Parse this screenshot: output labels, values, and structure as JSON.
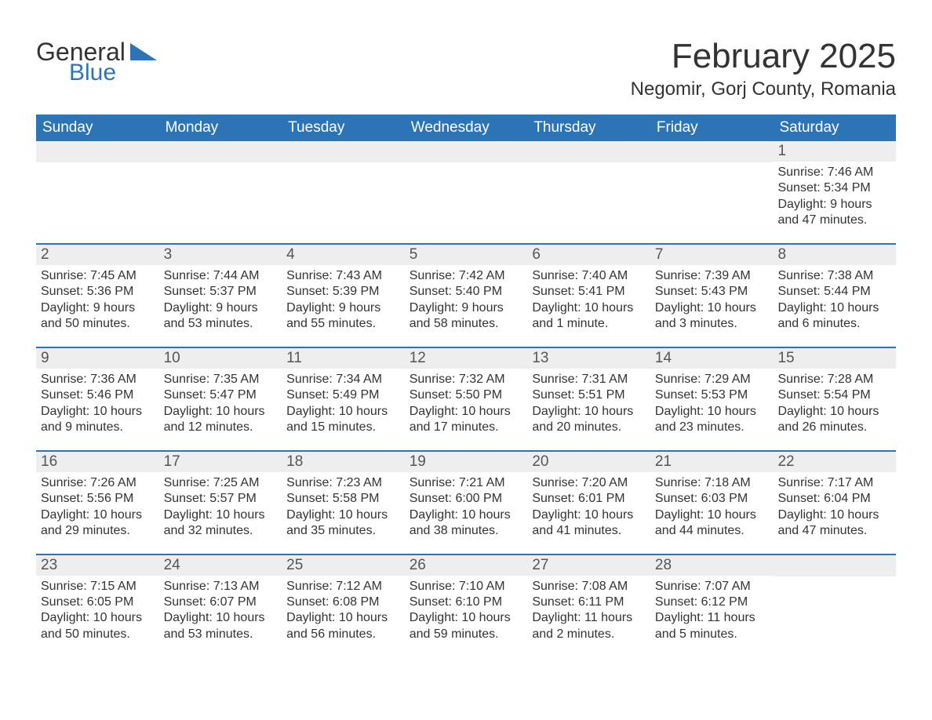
{
  "logo": {
    "text_general": "General",
    "text_blue": "Blue",
    "general_color": "#333333",
    "blue_color": "#2d74b6",
    "shape_color": "#2d74b6"
  },
  "title": "February 2025",
  "location": "Negomir, Gorj County, Romania",
  "colors": {
    "header_bg": "#2d74b6",
    "header_text": "#ffffff",
    "band_bg": "#eeeeee",
    "row_border": "#2d74b6",
    "body_text": "#333333",
    "page_bg": "#ffffff"
  },
  "fonts": {
    "family": "Arial, Helvetica, sans-serif",
    "title_size_pt": 33,
    "location_size_pt": 18,
    "dow_size_pt": 14,
    "daynum_size_pt": 14,
    "detail_size_pt": 12
  },
  "days_of_week": [
    "Sunday",
    "Monday",
    "Tuesday",
    "Wednesday",
    "Thursday",
    "Friday",
    "Saturday"
  ],
  "weeks": [
    [
      null,
      null,
      null,
      null,
      null,
      null,
      {
        "n": "1",
        "sunrise": "Sunrise: 7:46 AM",
        "sunset": "Sunset: 5:34 PM",
        "daylight": "Daylight: 9 hours and 47 minutes."
      }
    ],
    [
      {
        "n": "2",
        "sunrise": "Sunrise: 7:45 AM",
        "sunset": "Sunset: 5:36 PM",
        "daylight": "Daylight: 9 hours and 50 minutes."
      },
      {
        "n": "3",
        "sunrise": "Sunrise: 7:44 AM",
        "sunset": "Sunset: 5:37 PM",
        "daylight": "Daylight: 9 hours and 53 minutes."
      },
      {
        "n": "4",
        "sunrise": "Sunrise: 7:43 AM",
        "sunset": "Sunset: 5:39 PM",
        "daylight": "Daylight: 9 hours and 55 minutes."
      },
      {
        "n": "5",
        "sunrise": "Sunrise: 7:42 AM",
        "sunset": "Sunset: 5:40 PM",
        "daylight": "Daylight: 9 hours and 58 minutes."
      },
      {
        "n": "6",
        "sunrise": "Sunrise: 7:40 AM",
        "sunset": "Sunset: 5:41 PM",
        "daylight": "Daylight: 10 hours and 1 minute."
      },
      {
        "n": "7",
        "sunrise": "Sunrise: 7:39 AM",
        "sunset": "Sunset: 5:43 PM",
        "daylight": "Daylight: 10 hours and 3 minutes."
      },
      {
        "n": "8",
        "sunrise": "Sunrise: 7:38 AM",
        "sunset": "Sunset: 5:44 PM",
        "daylight": "Daylight: 10 hours and 6 minutes."
      }
    ],
    [
      {
        "n": "9",
        "sunrise": "Sunrise: 7:36 AM",
        "sunset": "Sunset: 5:46 PM",
        "daylight": "Daylight: 10 hours and 9 minutes."
      },
      {
        "n": "10",
        "sunrise": "Sunrise: 7:35 AM",
        "sunset": "Sunset: 5:47 PM",
        "daylight": "Daylight: 10 hours and 12 minutes."
      },
      {
        "n": "11",
        "sunrise": "Sunrise: 7:34 AM",
        "sunset": "Sunset: 5:49 PM",
        "daylight": "Daylight: 10 hours and 15 minutes."
      },
      {
        "n": "12",
        "sunrise": "Sunrise: 7:32 AM",
        "sunset": "Sunset: 5:50 PM",
        "daylight": "Daylight: 10 hours and 17 minutes."
      },
      {
        "n": "13",
        "sunrise": "Sunrise: 7:31 AM",
        "sunset": "Sunset: 5:51 PM",
        "daylight": "Daylight: 10 hours and 20 minutes."
      },
      {
        "n": "14",
        "sunrise": "Sunrise: 7:29 AM",
        "sunset": "Sunset: 5:53 PM",
        "daylight": "Daylight: 10 hours and 23 minutes."
      },
      {
        "n": "15",
        "sunrise": "Sunrise: 7:28 AM",
        "sunset": "Sunset: 5:54 PM",
        "daylight": "Daylight: 10 hours and 26 minutes."
      }
    ],
    [
      {
        "n": "16",
        "sunrise": "Sunrise: 7:26 AM",
        "sunset": "Sunset: 5:56 PM",
        "daylight": "Daylight: 10 hours and 29 minutes."
      },
      {
        "n": "17",
        "sunrise": "Sunrise: 7:25 AM",
        "sunset": "Sunset: 5:57 PM",
        "daylight": "Daylight: 10 hours and 32 minutes."
      },
      {
        "n": "18",
        "sunrise": "Sunrise: 7:23 AM",
        "sunset": "Sunset: 5:58 PM",
        "daylight": "Daylight: 10 hours and 35 minutes."
      },
      {
        "n": "19",
        "sunrise": "Sunrise: 7:21 AM",
        "sunset": "Sunset: 6:00 PM",
        "daylight": "Daylight: 10 hours and 38 minutes."
      },
      {
        "n": "20",
        "sunrise": "Sunrise: 7:20 AM",
        "sunset": "Sunset: 6:01 PM",
        "daylight": "Daylight: 10 hours and 41 minutes."
      },
      {
        "n": "21",
        "sunrise": "Sunrise: 7:18 AM",
        "sunset": "Sunset: 6:03 PM",
        "daylight": "Daylight: 10 hours and 44 minutes."
      },
      {
        "n": "22",
        "sunrise": "Sunrise: 7:17 AM",
        "sunset": "Sunset: 6:04 PM",
        "daylight": "Daylight: 10 hours and 47 minutes."
      }
    ],
    [
      {
        "n": "23",
        "sunrise": "Sunrise: 7:15 AM",
        "sunset": "Sunset: 6:05 PM",
        "daylight": "Daylight: 10 hours and 50 minutes."
      },
      {
        "n": "24",
        "sunrise": "Sunrise: 7:13 AM",
        "sunset": "Sunset: 6:07 PM",
        "daylight": "Daylight: 10 hours and 53 minutes."
      },
      {
        "n": "25",
        "sunrise": "Sunrise: 7:12 AM",
        "sunset": "Sunset: 6:08 PM",
        "daylight": "Daylight: 10 hours and 56 minutes."
      },
      {
        "n": "26",
        "sunrise": "Sunrise: 7:10 AM",
        "sunset": "Sunset: 6:10 PM",
        "daylight": "Daylight: 10 hours and 59 minutes."
      },
      {
        "n": "27",
        "sunrise": "Sunrise: 7:08 AM",
        "sunset": "Sunset: 6:11 PM",
        "daylight": "Daylight: 11 hours and 2 minutes."
      },
      {
        "n": "28",
        "sunrise": "Sunrise: 7:07 AM",
        "sunset": "Sunset: 6:12 PM",
        "daylight": "Daylight: 11 hours and 5 minutes."
      },
      null
    ]
  ]
}
